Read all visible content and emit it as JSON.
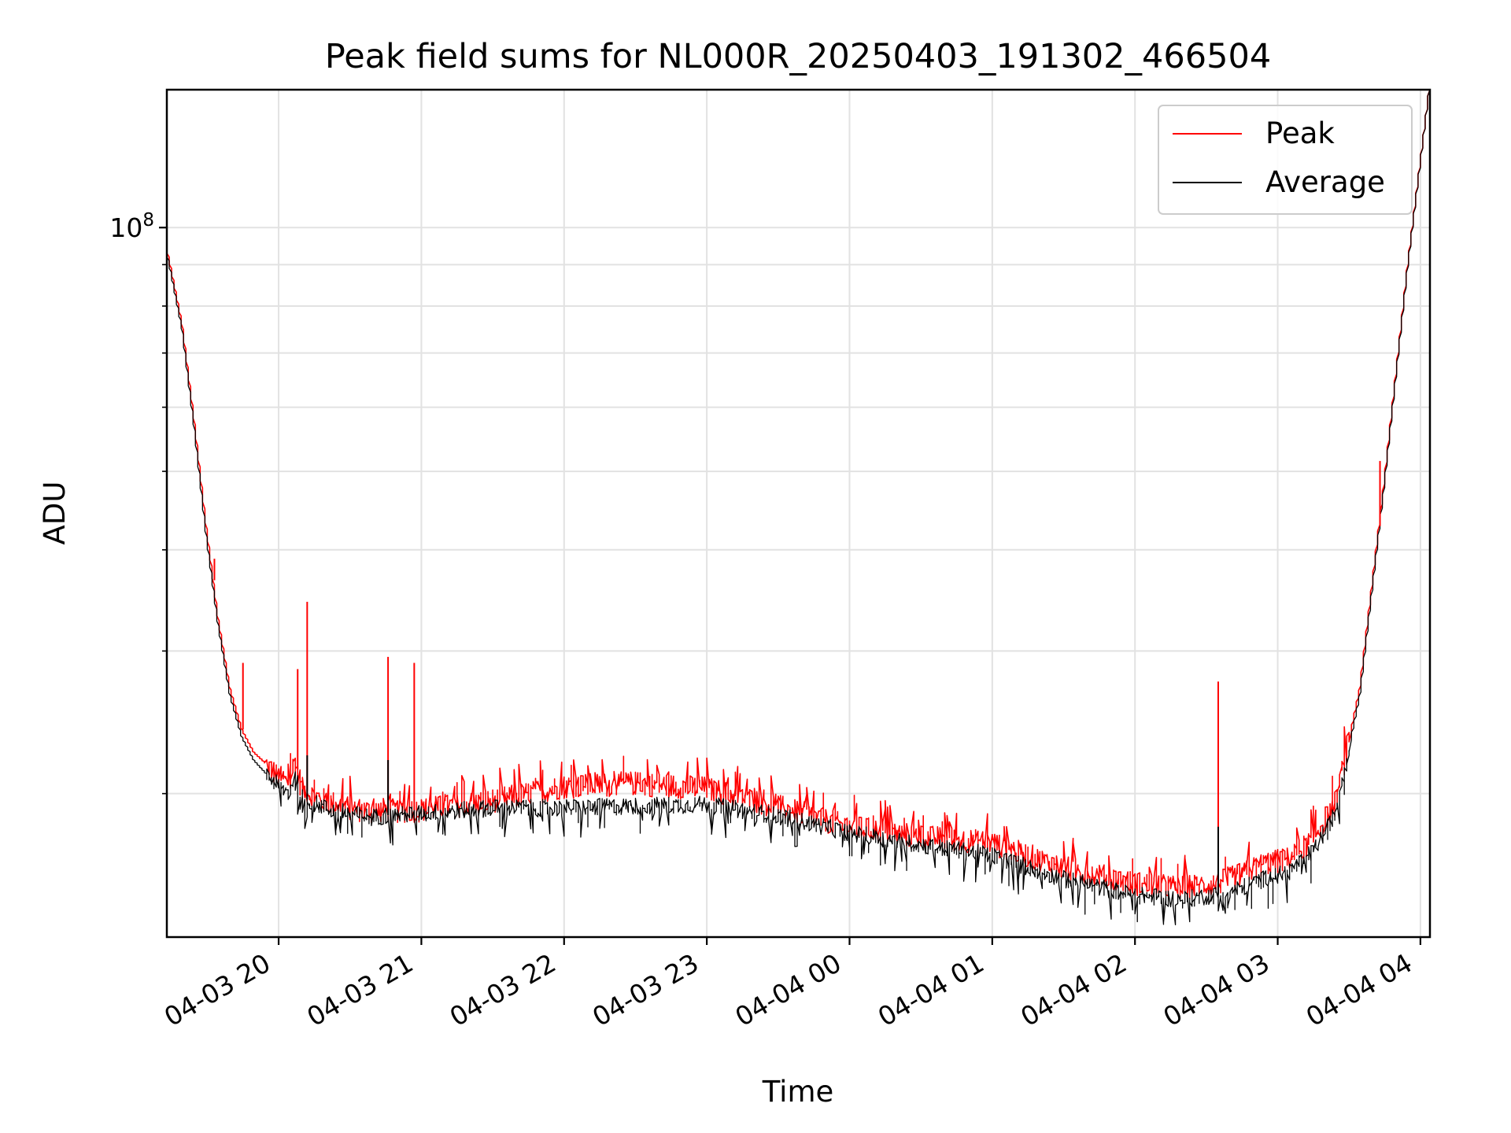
{
  "chart_data": {
    "type": "line",
    "title": "Peak field sums for NL000R_20250403_191302_466504",
    "xlabel": "Time",
    "ylabel": "ADU",
    "y_scale": "log",
    "grid": true,
    "legend_position": "top-right",
    "xlim": [
      "2025-04-03T19:13",
      "2025-04-04T04:04"
    ],
    "ylim": [
      13300000,
      148000000
    ],
    "x_ticks": [
      {
        "t": "2025-04-03T20:00",
        "label": "04-03 20"
      },
      {
        "t": "2025-04-03T21:00",
        "label": "04-03 21"
      },
      {
        "t": "2025-04-03T22:00",
        "label": "04-03 22"
      },
      {
        "t": "2025-04-03T23:00",
        "label": "04-03 23"
      },
      {
        "t": "2025-04-04T00:00",
        "label": "04-04 00"
      },
      {
        "t": "2025-04-04T01:00",
        "label": "04-04 01"
      },
      {
        "t": "2025-04-04T02:00",
        "label": "04-04 02"
      },
      {
        "t": "2025-04-04T03:00",
        "label": "04-04 03"
      },
      {
        "t": "2025-04-04T04:00",
        "label": "04-04 04"
      }
    ],
    "y_ticks_major": [
      {
        "value": 100000000,
        "base": "10",
        "exponent": "8"
      }
    ],
    "y_ticks_minor": [
      20000000,
      30000000,
      40000000,
      50000000,
      60000000,
      70000000,
      80000000,
      90000000
    ],
    "series": [
      {
        "name": "Peak",
        "color": "#ff0000",
        "x": [
          "2025-04-03T19:13",
          "2025-04-03T19:15",
          "2025-04-03T19:20",
          "2025-04-03T19:25",
          "2025-04-03T19:30",
          "2025-04-03T19:35",
          "2025-04-03T19:40",
          "2025-04-03T19:45",
          "2025-04-03T19:50",
          "2025-04-03T19:55",
          "2025-04-03T20:00",
          "2025-04-03T20:05",
          "2025-04-03T20:07",
          "2025-04-03T20:10",
          "2025-04-03T20:15",
          "2025-04-03T20:20",
          "2025-04-03T20:30",
          "2025-04-03T20:40",
          "2025-04-03T20:45",
          "2025-04-03T20:50",
          "2025-04-03T21:00",
          "2025-04-03T21:30",
          "2025-04-03T22:00",
          "2025-04-03T22:30",
          "2025-04-03T23:00",
          "2025-04-03T23:30",
          "2025-04-04T00:00",
          "2025-04-04T00:30",
          "2025-04-04T01:00",
          "2025-04-04T01:30",
          "2025-04-04T02:00",
          "2025-04-04T02:20",
          "2025-04-04T02:35",
          "2025-04-04T02:45",
          "2025-04-04T02:55",
          "2025-04-04T03:05",
          "2025-04-04T03:15",
          "2025-04-04T03:25",
          "2025-04-04T03:35",
          "2025-04-04T03:45",
          "2025-04-04T03:55",
          "2025-04-04T04:04"
        ],
        "values": [
          96000000,
          90000000,
          76000000,
          58000000,
          43000000,
          33000000,
          27000000,
          24000000,
          22500000,
          21800000,
          21000000,
          20600000,
          22000000,
          20300000,
          19900000,
          19600000,
          19200000,
          19000000,
          19100000,
          19050000,
          19100000,
          19600000,
          20400000,
          20600000,
          20300000,
          19300000,
          18200000,
          17700000,
          17400000,
          16200000,
          15500000,
          15300000,
          15500000,
          15900000,
          16400000,
          16600000,
          17500000,
          19500000,
          27000000,
          48000000,
          90000000,
          148000000
        ]
      },
      {
        "name": "Average",
        "color": "#000000",
        "x": [
          "2025-04-03T19:13",
          "2025-04-03T19:15",
          "2025-04-03T19:20",
          "2025-04-03T19:25",
          "2025-04-03T19:30",
          "2025-04-03T19:35",
          "2025-04-03T19:40",
          "2025-04-03T19:45",
          "2025-04-03T19:50",
          "2025-04-03T19:55",
          "2025-04-03T20:00",
          "2025-04-03T20:05",
          "2025-04-03T20:07",
          "2025-04-03T20:10",
          "2025-04-03T20:15",
          "2025-04-03T20:20",
          "2025-04-03T20:30",
          "2025-04-03T20:40",
          "2025-04-03T20:45",
          "2025-04-03T20:50",
          "2025-04-03T21:00",
          "2025-04-03T21:30",
          "2025-04-03T22:00",
          "2025-04-03T22:30",
          "2025-04-03T23:00",
          "2025-04-03T23:30",
          "2025-04-04T00:00",
          "2025-04-04T00:30",
          "2025-04-04T01:00",
          "2025-04-04T01:30",
          "2025-04-04T02:00",
          "2025-04-04T02:20",
          "2025-04-04T02:35",
          "2025-04-04T02:45",
          "2025-04-04T02:55",
          "2025-04-04T03:05",
          "2025-04-04T03:15",
          "2025-04-04T03:25",
          "2025-04-04T03:35",
          "2025-04-04T03:45",
          "2025-04-04T03:55",
          "2025-04-04T04:04"
        ],
        "values": [
          95000000,
          89000000,
          75000000,
          57000000,
          42000000,
          32500000,
          26500000,
          23500000,
          22000000,
          21200000,
          20500000,
          20000000,
          21000000,
          19800000,
          19500000,
          19200000,
          18900000,
          18700000,
          18800000,
          18800000,
          18900000,
          19200000,
          19200000,
          19300000,
          19400000,
          18800000,
          17900000,
          17300000,
          16800000,
          15700000,
          15000000,
          14800000,
          15000000,
          15300000,
          15700000,
          16000000,
          16900000,
          19000000,
          26500000,
          47500000,
          89500000,
          148000000
        ]
      }
    ],
    "spikes": [
      {
        "series": "Peak",
        "t": "2025-04-03T19:33",
        "value": 39000000
      },
      {
        "series": "Peak",
        "t": "2025-04-03T19:45",
        "value": 29000000
      },
      {
        "series": "Peak",
        "t": "2025-04-03T20:08",
        "value": 28500000
      },
      {
        "series": "Peak",
        "t": "2025-04-03T20:12",
        "value": 34500000
      },
      {
        "series": "Peak",
        "t": "2025-04-03T20:46",
        "value": 29500000
      },
      {
        "series": "Peak",
        "t": "2025-04-03T20:57",
        "value": 29000000
      },
      {
        "series": "Peak",
        "t": "2025-04-04T02:35",
        "value": 27500000
      },
      {
        "series": "Peak",
        "t": "2025-04-04T03:43",
        "value": 51500000
      },
      {
        "series": "Average",
        "t": "2025-04-03T20:12",
        "value": 22300000
      },
      {
        "series": "Average",
        "t": "2025-04-03T20:46",
        "value": 22000000
      },
      {
        "series": "Average",
        "t": "2025-04-04T02:35",
        "value": 18200000
      }
    ]
  }
}
